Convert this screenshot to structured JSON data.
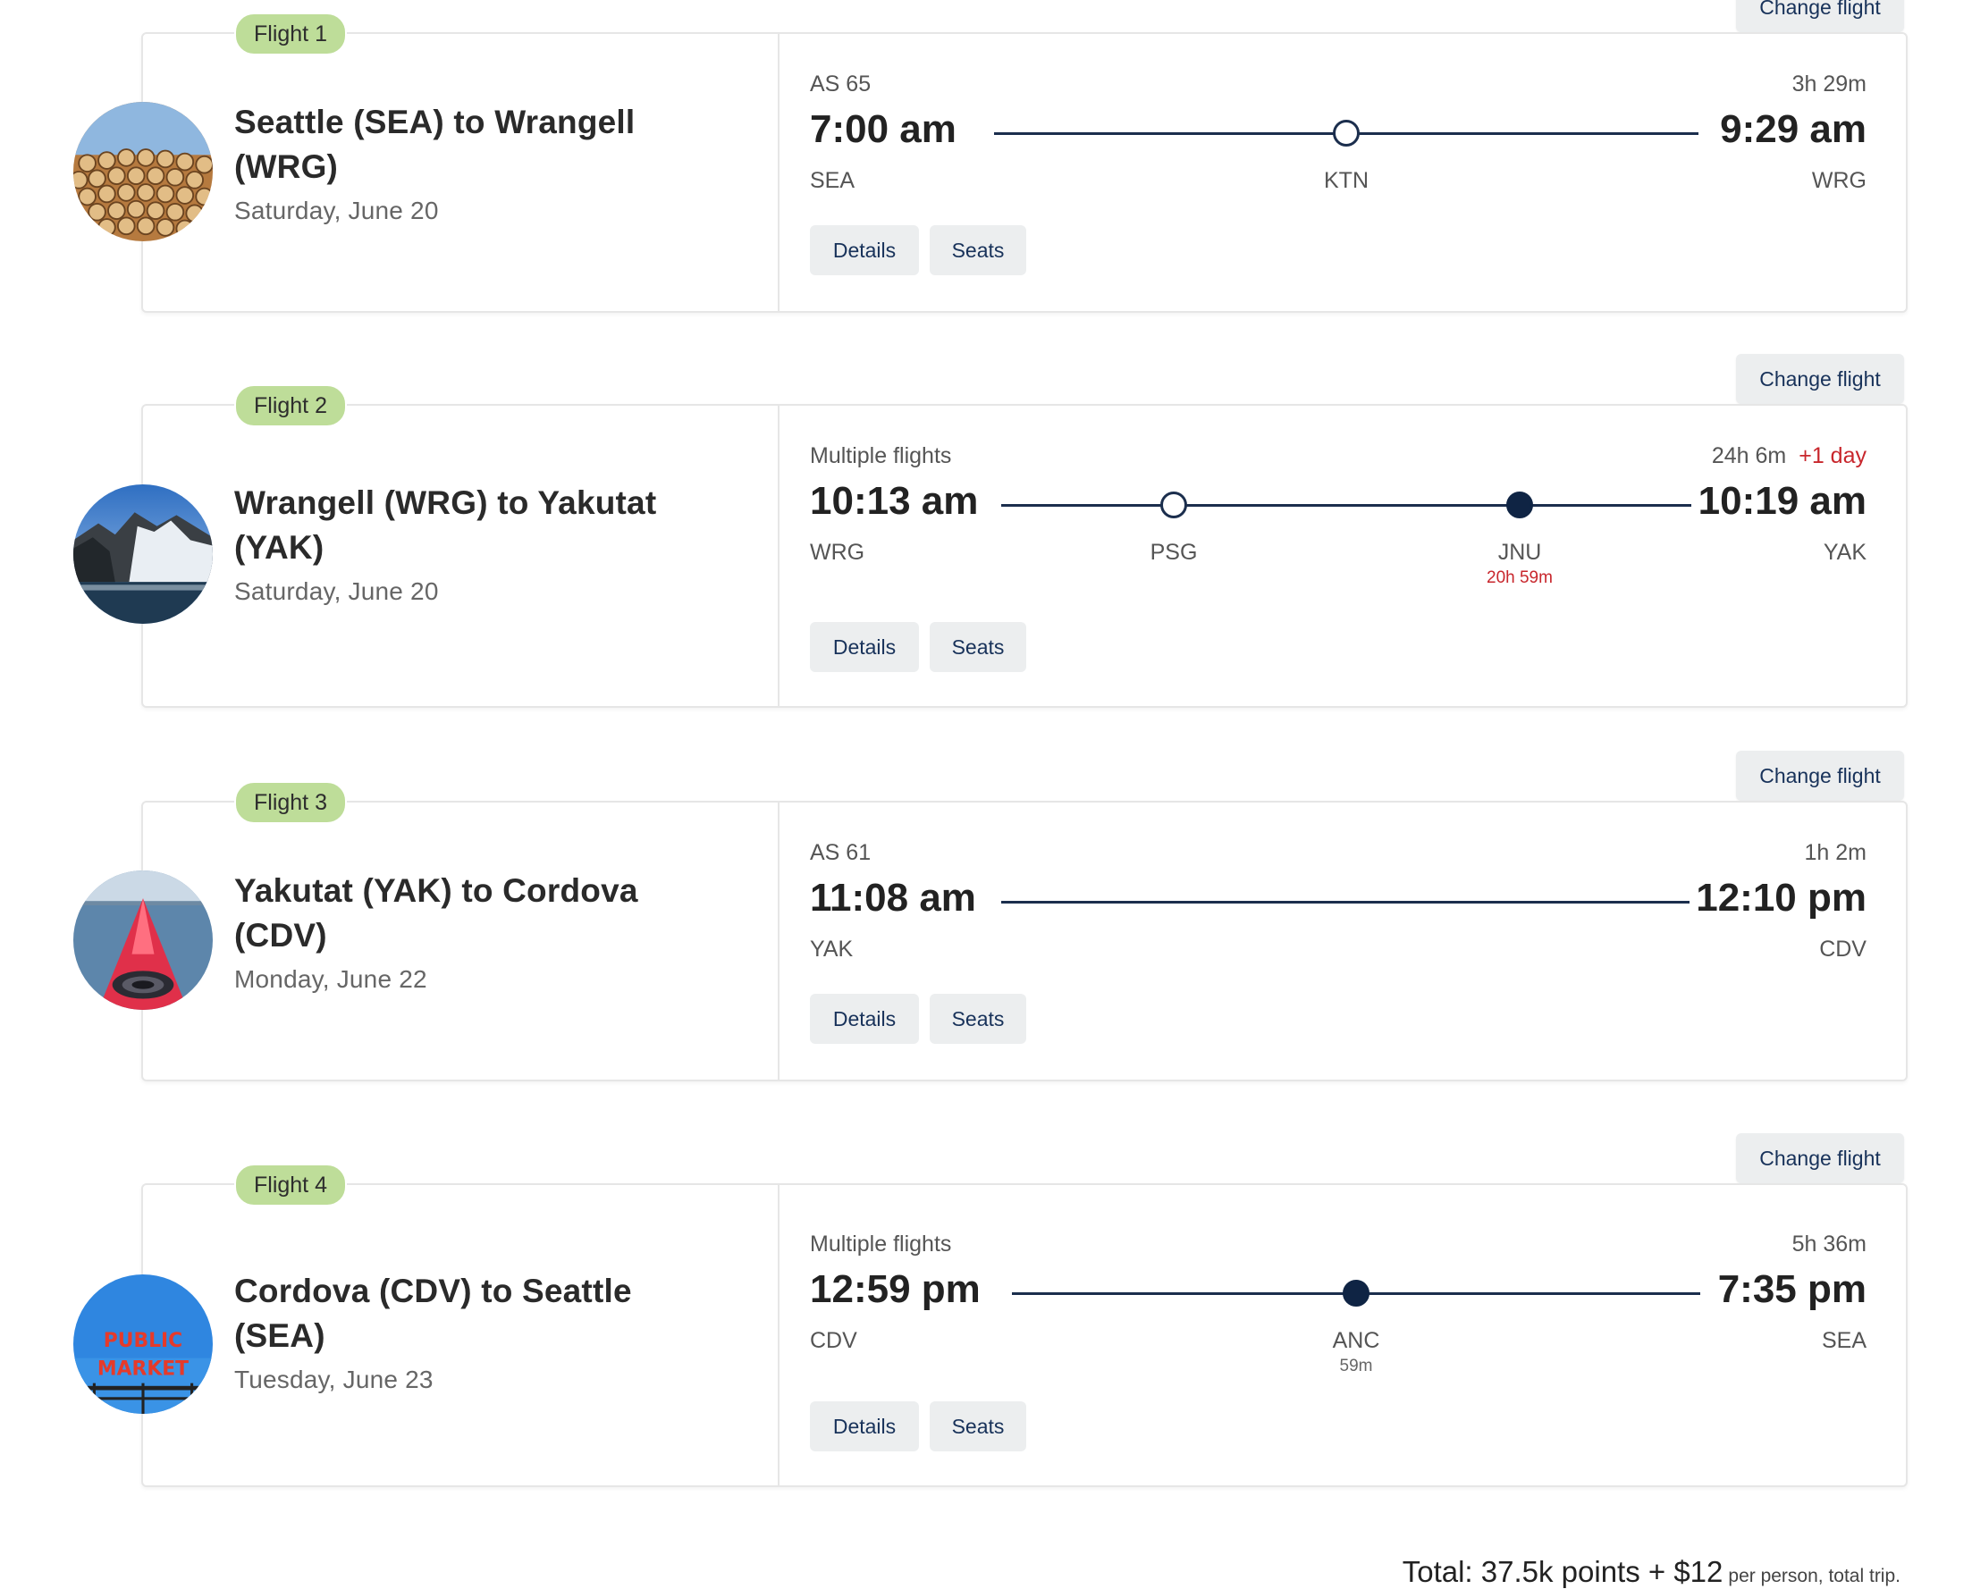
{
  "flights": [
    {
      "badge": "Flight 1",
      "change_label": "Change flight",
      "route_title": "Seattle (SEA) to Wrangell (WRG)",
      "date": "Saturday, June 20",
      "flight_number": "AS 65",
      "duration": "3h 29m",
      "plus_day": "",
      "depart_time": "7:00 am",
      "arrive_time": "9:29 am",
      "origin": "SEA",
      "destination": "WRG",
      "stops": [
        {
          "code": "KTN",
          "layover": "",
          "type": "open"
        }
      ],
      "details_label": "Details",
      "seats_label": "Seats",
      "image": "stacked-logs"
    },
    {
      "badge": "Flight 2",
      "change_label": "Change flight",
      "route_title": "Wrangell (WRG) to Yakutat (YAK)",
      "date": "Saturday, June 20",
      "flight_number": "Multiple flights",
      "duration": "24h 6m",
      "plus_day": "+1 day",
      "depart_time": "10:13 am",
      "arrive_time": "10:19 am",
      "origin": "WRG",
      "destination": "YAK",
      "stops": [
        {
          "code": "PSG",
          "layover": "",
          "type": "open"
        },
        {
          "code": "JNU",
          "layover": "20h 59m",
          "type": "filled"
        }
      ],
      "details_label": "Details",
      "seats_label": "Seats",
      "image": "glacier"
    },
    {
      "badge": "Flight 3",
      "change_label": "Change flight",
      "route_title": "Yakutat (YAK) to Cordova (CDV)",
      "date": "Monday, June 22",
      "flight_number": "AS 61",
      "duration": "1h 2m",
      "plus_day": "",
      "depart_time": "11:08 am",
      "arrive_time": "12:10 pm",
      "origin": "YAK",
      "destination": "CDV",
      "stops": [],
      "details_label": "Details",
      "seats_label": "Seats",
      "image": "kayak"
    },
    {
      "badge": "Flight 4",
      "change_label": "Change flight",
      "route_title": "Cordova (CDV) to Seattle (SEA)",
      "date": "Tuesday, June 23",
      "flight_number": "Multiple flights",
      "duration": "5h 36m",
      "plus_day": "",
      "depart_time": "12:59 pm",
      "arrive_time": "7:35 pm",
      "origin": "CDV",
      "destination": "SEA",
      "stops": [
        {
          "code": "ANC",
          "layover": "59m",
          "type": "filled"
        }
      ],
      "details_label": "Details",
      "seats_label": "Seats",
      "image": "public-market-sign",
      "image_text_1": "PUBLIC",
      "image_text_2": "MARKET"
    }
  ],
  "total": {
    "label": "Total: 37.5k points + $12",
    "note": "per person, total trip."
  },
  "colors": {
    "badge_green": "#bedd99",
    "navy": "#1b2e4d",
    "alert_red": "#c8262c",
    "button_gray": "#eceeef"
  }
}
